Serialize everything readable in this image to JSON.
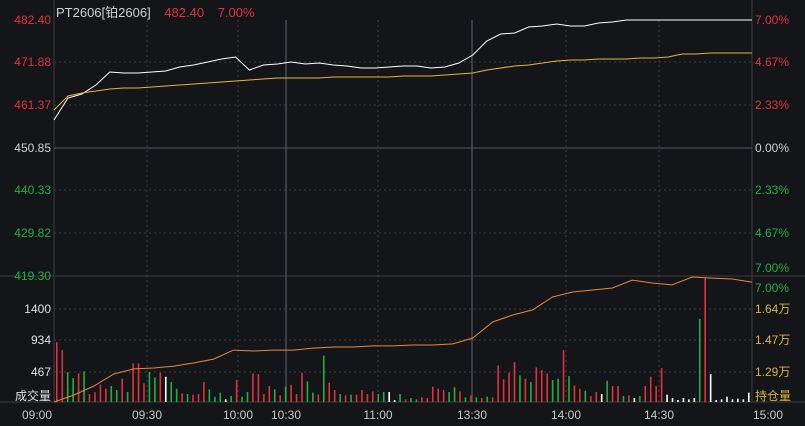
{
  "header": {
    "symbol": "PT2606[铂2606]",
    "last_price": "482.40",
    "change_pct": "7.00%"
  },
  "colors": {
    "up": "#e0323c",
    "down": "#1fb043",
    "neutral": "#d0d0d0",
    "price_line": "#ffffff",
    "avg_line": "#e8b53a",
    "oi_line": "#e8893a",
    "oi_label": "#d9b53a",
    "grid": "#3a3d44"
  },
  "chart_data": [
    {
      "type": "line",
      "title": "",
      "price_axis": {
        "ticks": [
          "482.40",
          "471.88",
          "461.37",
          "450.85",
          "440.33",
          "429.82",
          "419.30"
        ],
        "ylim": [
          419.3,
          482.4
        ],
        "base": 450.85
      },
      "pct_axis": {
        "ticks": [
          "7.00%",
          "4.67%",
          "2.33%",
          "0.00%",
          "2.33%",
          "4.67%",
          "7.00%"
        ]
      },
      "series": [
        {
          "key": "price",
          "values": [
            457.75,
            463.17,
            464.16,
            466.38,
            469.58,
            469.34,
            469.34,
            469.58,
            469.83,
            470.81,
            471.31,
            472.05,
            472.79,
            473.28,
            470.08,
            471.31,
            471.55,
            472.05,
            471.55,
            471.8,
            471.31,
            471.06,
            470.57,
            470.57,
            470.81,
            471.06,
            471.06,
            470.57,
            470.81,
            471.8,
            473.77,
            477.22,
            478.95,
            479.19,
            480.67,
            480.92,
            481.41,
            480.92,
            480.92,
            481.66,
            481.91,
            482.4,
            482.4,
            482.4,
            482.4,
            482.4,
            482.4,
            482.4,
            482.4,
            482.4,
            482.4
          ]
        },
        {
          "key": "avg",
          "values": [
            460.22,
            463.67,
            464.41,
            464.9,
            465.39,
            465.64,
            465.64,
            465.89,
            466.14,
            466.38,
            466.63,
            466.88,
            467.12,
            467.37,
            467.61,
            467.86,
            468.11,
            468.11,
            468.11,
            468.11,
            468.35,
            468.35,
            468.35,
            468.35,
            468.35,
            468.6,
            468.6,
            468.6,
            468.84,
            469.09,
            469.34,
            470.08,
            470.57,
            471.06,
            471.31,
            471.8,
            472.29,
            472.54,
            472.54,
            472.79,
            472.79,
            472.79,
            473.03,
            473.03,
            473.28,
            474.02,
            474.02,
            474.27,
            474.27,
            474.27,
            474.27
          ]
        }
      ]
    },
    {
      "type": "bar",
      "title": "",
      "ylabel": "成交量",
      "y2label": "持仓量",
      "volume_axis": {
        "ticks": [
          "1400",
          "934",
          "467"
        ],
        "ylim": [
          0,
          1870
        ]
      },
      "oi_axis": {
        "ticks": [
          "7.00%",
          "1.64万",
          "1.47万",
          "1.29万"
        ],
        "ylim": [
          1.12,
          1.82
        ]
      },
      "x_ticks": [
        "09:00",
        "09:30",
        "10:00",
        "10:30",
        "11:00",
        "13:30",
        "14:00",
        "14:30",
        "15:00"
      ],
      "volume": [
        [
          900,
          "r"
        ],
        [
          780,
          "r"
        ],
        [
          450,
          "g"
        ],
        [
          360,
          "g"
        ],
        [
          430,
          "r"
        ],
        [
          460,
          "g"
        ],
        [
          120,
          "r"
        ],
        [
          150,
          "r"
        ],
        [
          260,
          "r"
        ],
        [
          200,
          "r"
        ],
        [
          240,
          "g"
        ],
        [
          180,
          "g"
        ],
        [
          350,
          "r"
        ],
        [
          150,
          "g"
        ],
        [
          580,
          "r"
        ],
        [
          580,
          "r"
        ],
        [
          280,
          "r"
        ],
        [
          450,
          "g"
        ],
        [
          370,
          "g"
        ],
        [
          440,
          "r"
        ],
        [
          380,
          "w"
        ],
        [
          300,
          "g"
        ],
        [
          200,
          "g"
        ],
        [
          130,
          "r"
        ],
        [
          120,
          "g"
        ],
        [
          110,
          "r"
        ],
        [
          120,
          "r"
        ],
        [
          300,
          "r"
        ],
        [
          190,
          "g"
        ],
        [
          80,
          "g"
        ],
        [
          140,
          "g"
        ],
        [
          40,
          "w"
        ],
        [
          90,
          "g"
        ],
        [
          330,
          "r"
        ],
        [
          80,
          "g"
        ],
        [
          150,
          "g"
        ],
        [
          430,
          "r"
        ],
        [
          420,
          "r"
        ],
        [
          120,
          "r"
        ],
        [
          240,
          "r"
        ],
        [
          190,
          "g"
        ],
        [
          100,
          "r"
        ],
        [
          230,
          "g"
        ],
        [
          260,
          "r"
        ],
        [
          120,
          "r"
        ],
        [
          440,
          "r"
        ],
        [
          310,
          "g"
        ],
        [
          140,
          "g"
        ],
        [
          110,
          "r"
        ],
        [
          700,
          "g"
        ],
        [
          290,
          "r"
        ],
        [
          180,
          "r"
        ],
        [
          120,
          "g"
        ],
        [
          100,
          "r"
        ],
        [
          110,
          "g"
        ],
        [
          110,
          "r"
        ],
        [
          180,
          "r"
        ],
        [
          120,
          "r"
        ],
        [
          160,
          "r"
        ],
        [
          120,
          "g"
        ],
        [
          150,
          "g"
        ],
        [
          150,
          "w"
        ],
        [
          30,
          "w"
        ],
        [
          120,
          "g"
        ],
        [
          40,
          "r"
        ],
        [
          60,
          "g"
        ],
        [
          40,
          "g"
        ],
        [
          70,
          "r"
        ],
        [
          60,
          "r"
        ],
        [
          230,
          "r"
        ],
        [
          200,
          "r"
        ],
        [
          180,
          "r"
        ],
        [
          150,
          "g"
        ],
        [
          220,
          "g"
        ],
        [
          160,
          "r"
        ],
        [
          70,
          "g"
        ],
        [
          100,
          "r"
        ],
        [
          70,
          "g"
        ],
        [
          60,
          "r"
        ],
        [
          80,
          "g"
        ],
        [
          70,
          "r"
        ],
        [
          550,
          "r"
        ],
        [
          340,
          "r"
        ],
        [
          440,
          "r"
        ],
        [
          600,
          "r"
        ],
        [
          400,
          "g"
        ],
        [
          350,
          "r"
        ],
        [
          300,
          "g"
        ],
        [
          520,
          "r"
        ],
        [
          480,
          "r"
        ],
        [
          430,
          "r"
        ],
        [
          330,
          "g"
        ],
        [
          350,
          "g"
        ],
        [
          780,
          "r"
        ],
        [
          390,
          "g"
        ],
        [
          250,
          "r"
        ],
        [
          200,
          "r"
        ],
        [
          170,
          "g"
        ],
        [
          90,
          "r"
        ],
        [
          150,
          "r"
        ],
        [
          120,
          "w"
        ],
        [
          320,
          "g"
        ],
        [
          240,
          "r"
        ],
        [
          240,
          "r"
        ],
        [
          90,
          "g"
        ],
        [
          100,
          "r"
        ],
        [
          60,
          "w"
        ],
        [
          90,
          "g"
        ],
        [
          240,
          "r"
        ],
        [
          380,
          "r"
        ],
        [
          240,
          "r"
        ],
        [
          510,
          "r"
        ],
        [
          110,
          "w"
        ],
        [
          60,
          "w"
        ],
        [
          30,
          "w"
        ],
        [
          60,
          "w"
        ],
        [
          40,
          "w"
        ],
        [
          60,
          "w"
        ],
        [
          1250,
          "g"
        ],
        [
          1870,
          "r"
        ],
        [
          420,
          "w"
        ],
        [
          30,
          "w"
        ],
        [
          40,
          "w"
        ],
        [
          80,
          "w"
        ],
        [
          40,
          "w"
        ],
        [
          50,
          "w"
        ],
        [
          40,
          "w"
        ],
        [
          140,
          "w"
        ]
      ],
      "open_interest": [
        1.123,
        1.162,
        1.212,
        1.279,
        1.307,
        1.312,
        1.323,
        1.34,
        1.362,
        1.412,
        1.407,
        1.412,
        1.412,
        1.423,
        1.429,
        1.429,
        1.435,
        1.435,
        1.44,
        1.44,
        1.446,
        1.479,
        1.568,
        1.607,
        1.635,
        1.707,
        1.735,
        1.746,
        1.757,
        1.801,
        1.785,
        1.774,
        1.818,
        1.812,
        1.807,
        1.79
      ]
    }
  ]
}
